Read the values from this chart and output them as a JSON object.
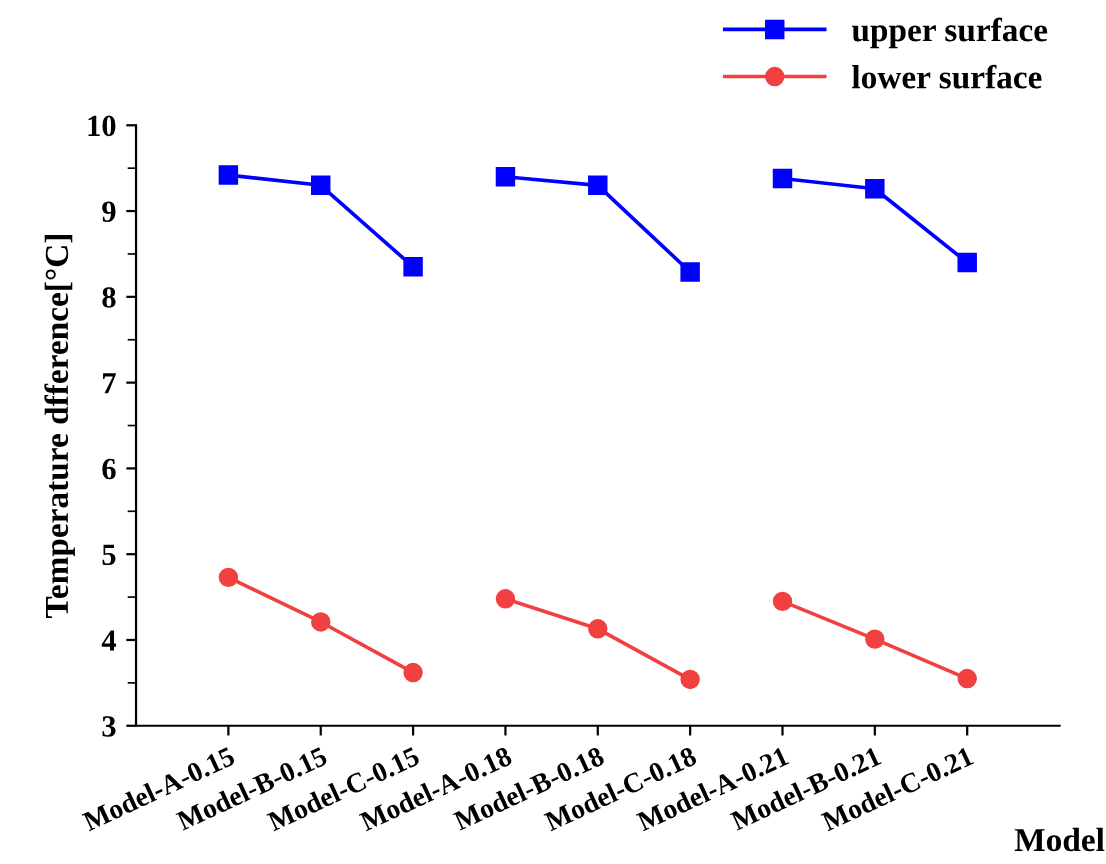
{
  "chart_data": {
    "type": "line",
    "xlabel": "Model",
    "ylabel": "Temperature dfference[°C]",
    "categories": [
      "Model-A-0.15",
      "Model-B-0.15",
      "Model-C-0.15",
      "Model-A-0.18",
      "Model-B-0.18",
      "Model-C-0.18",
      "Model-A-0.21",
      "Model-B-0.21",
      "Model-C-0.21"
    ],
    "series": [
      {
        "name": "upper surface",
        "color": "#0000ff",
        "marker": "square",
        "values": [
          9.42,
          9.3,
          8.35,
          null,
          null,
          null,
          null,
          null,
          null
        ]
      },
      {
        "color": "#0000ff",
        "marker": "square",
        "values": [
          null,
          null,
          null,
          9.4,
          9.3,
          8.29,
          null,
          null,
          null
        ]
      },
      {
        "color": "#0000ff",
        "marker": "square",
        "values": [
          null,
          null,
          null,
          null,
          null,
          null,
          9.38,
          9.26,
          8.4
        ]
      },
      {
        "name": "lower surface",
        "color": "#f04040",
        "marker": "circle",
        "values": [
          4.73,
          4.21,
          3.62,
          null,
          null,
          null,
          null,
          null,
          null
        ]
      },
      {
        "color": "#f04040",
        "marker": "circle",
        "values": [
          null,
          null,
          null,
          4.48,
          4.13,
          3.54,
          null,
          null,
          null
        ]
      },
      {
        "color": "#f04040",
        "marker": "circle",
        "values": [
          null,
          null,
          null,
          null,
          null,
          null,
          4.45,
          4.01,
          3.55
        ]
      }
    ],
    "ylim": [
      3,
      10
    ],
    "yticks": [
      3,
      4,
      5,
      6,
      7,
      8,
      9,
      10
    ],
    "grid": false,
    "legend": "top right",
    "line_style": "solid"
  }
}
